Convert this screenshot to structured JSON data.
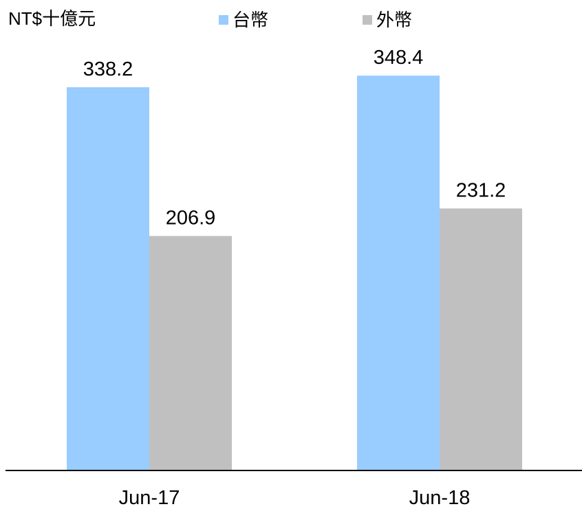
{
  "chart_data": {
    "type": "bar",
    "ylabel": "NT$十億元",
    "categories": [
      "Jun-17",
      "Jun-18"
    ],
    "series": [
      {
        "name": "台幣",
        "values": [
          338.2,
          348.4
        ],
        "color": "#99ccff"
      },
      {
        "name": "外幣",
        "values": [
          206.9,
          231.2
        ],
        "color": "#c0c0c0"
      }
    ],
    "ylim": [
      0,
      400
    ],
    "grid": false,
    "legend_position": "top"
  }
}
